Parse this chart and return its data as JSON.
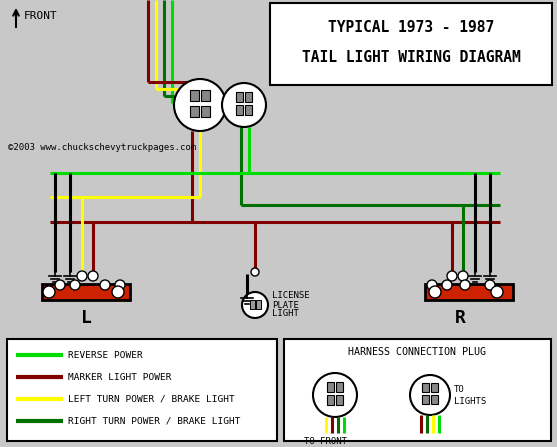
{
  "title_line1": "TYPICAL 1973 - 1987",
  "title_line2": "TAIL LIGHT WIRING DIAGRAM",
  "copyright": "©2003 www.chuckschevytruckpages.com",
  "bg_color": "#c8c8c8",
  "G": "#00dd00",
  "DR": "#800000",
  "Y": "#ffff00",
  "DG": "#007000",
  "BK": "#000000",
  "legend": [
    {
      "color": "#00dd00",
      "label": "REVERSE POWER"
    },
    {
      "color": "#800000",
      "label": "MARKER LIGHT POWER"
    },
    {
      "color": "#ffff00",
      "label": "LEFT TURN POWER / BRAKE LIGHT"
    },
    {
      "color": "#007000",
      "label": "RIGHT TURN POWER / BRAKE LIGHT"
    }
  ]
}
